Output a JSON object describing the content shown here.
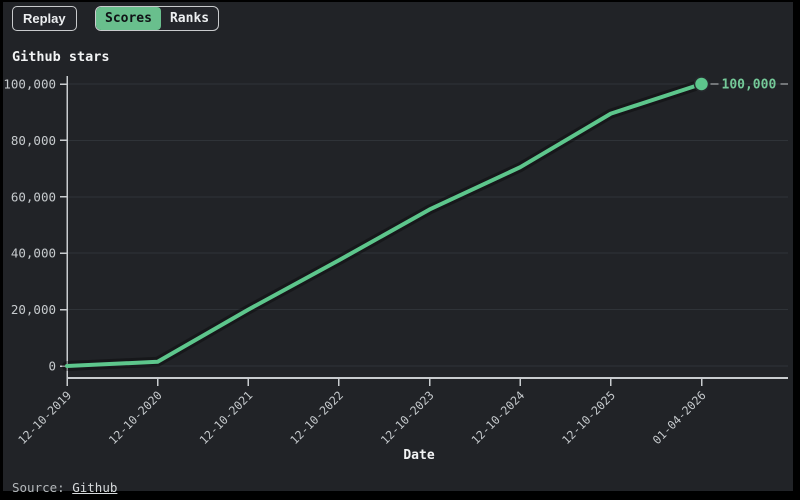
{
  "toolbar": {
    "replay_label": "Replay",
    "scores_label": "Scores",
    "ranks_label": "Ranks"
  },
  "chart_title": "Github stars",
  "chart_data": {
    "type": "line",
    "title": "Github stars",
    "categories": [
      "12-10-2019",
      "12-10-2020",
      "12-10-2021",
      "12-10-2022",
      "12-10-2023",
      "12-10-2024",
      "12-10-2025",
      "01-04-2026"
    ],
    "series": [
      {
        "name": "Github stars",
        "values": [
          0,
          1500,
          20000,
          37500,
          55500,
          70500,
          89500,
          100000
        ]
      }
    ],
    "end_label": "100,000",
    "xlabel": "Date",
    "ylabel": "",
    "y_tick_labels": [
      "0",
      "20,000",
      "40,000",
      "60,000",
      "80,000",
      "100,000"
    ],
    "ylim": [
      0,
      100000
    ],
    "grid": "horizontal",
    "legend": "none"
  },
  "footer": {
    "source_prefix": "Source: ",
    "source_link": "Github"
  },
  "colors": {
    "line_green": "#5dc68c",
    "label_green": "#74c998",
    "button_green": "#69bf8d",
    "panel_bg": "#212327",
    "grid": "#2f3338",
    "axis": "#c9cccf",
    "tick_text": "#c6cacd"
  }
}
